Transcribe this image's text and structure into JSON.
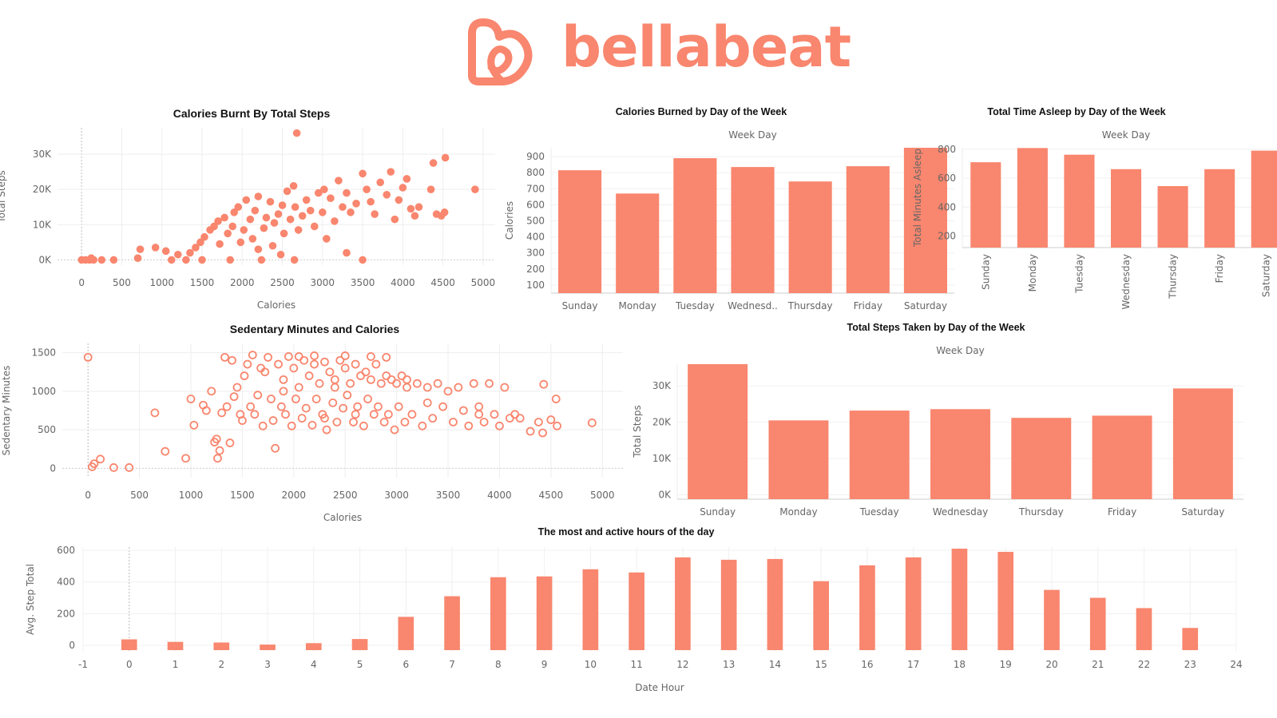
{
  "brand": {
    "name": "bellabeat",
    "color": "#f9866e"
  },
  "chart_data": [
    {
      "id": "calories-steps",
      "type": "scatter",
      "title": "Calories Burnt By Total Steps",
      "xlabel": "Calories",
      "ylabel": "Total Steps",
      "xlim": [
        -300,
        5150
      ],
      "ylim": [
        -1500,
        37500
      ],
      "xticks": [
        0,
        500,
        1000,
        1500,
        2000,
        2500,
        3000,
        3500,
        4000,
        4500,
        5000
      ],
      "yticks": [
        0,
        10000,
        20000,
        30000
      ],
      "ytick_labels": [
        "0K",
        "10K",
        "20K",
        "30K"
      ],
      "marker": "filled",
      "points": [
        [
          0,
          0
        ],
        [
          50,
          0
        ],
        [
          100,
          0
        ],
        [
          120,
          500
        ],
        [
          150,
          0
        ],
        [
          250,
          0
        ],
        [
          400,
          0
        ],
        [
          700,
          500
        ],
        [
          730,
          3000
        ],
        [
          920,
          3500
        ],
        [
          1050,
          2500
        ],
        [
          1120,
          0
        ],
        [
          1200,
          1500
        ],
        [
          1300,
          0
        ],
        [
          1350,
          2000
        ],
        [
          1420,
          3500
        ],
        [
          1480,
          5000
        ],
        [
          1500,
          0
        ],
        [
          1530,
          6500
        ],
        [
          1600,
          8500
        ],
        [
          1650,
          9500
        ],
        [
          1700,
          11000
        ],
        [
          1720,
          4500
        ],
        [
          1780,
          12000
        ],
        [
          1820,
          7500
        ],
        [
          1850,
          0
        ],
        [
          1880,
          9500
        ],
        [
          1900,
          13500
        ],
        [
          1950,
          15000
        ],
        [
          1980,
          5000
        ],
        [
          2020,
          8500
        ],
        [
          2050,
          17000
        ],
        [
          2100,
          11500
        ],
        [
          2130,
          6000
        ],
        [
          2160,
          14000
        ],
        [
          2200,
          18000
        ],
        [
          2240,
          0
        ],
        [
          2270,
          9000
        ],
        [
          2300,
          12000
        ],
        [
          2350,
          16500
        ],
        [
          2380,
          4000
        ],
        [
          2400,
          10500
        ],
        [
          2450,
          13000
        ],
        [
          2500,
          15500
        ],
        [
          2520,
          7500
        ],
        [
          2560,
          19500
        ],
        [
          2600,
          11500
        ],
        [
          2640,
          21000
        ],
        [
          2660,
          15000
        ],
        [
          2680,
          36000
        ],
        [
          2700,
          8500
        ],
        [
          2750,
          12500
        ],
        [
          2800,
          17000
        ],
        [
          2850,
          14000
        ],
        [
          2900,
          9500
        ],
        [
          2950,
          19000
        ],
        [
          3000,
          13500
        ],
        [
          3020,
          20000
        ],
        [
          3050,
          6000
        ],
        [
          3100,
          17500
        ],
        [
          3150,
          11000
        ],
        [
          3200,
          22500
        ],
        [
          3250,
          15000
        ],
        [
          3300,
          19000
        ],
        [
          3350,
          13500
        ],
        [
          3420,
          16000
        ],
        [
          3500,
          24500
        ],
        [
          3550,
          20000
        ],
        [
          3600,
          16500
        ],
        [
          3650,
          13000
        ],
        [
          3720,
          22000
        ],
        [
          3800,
          18500
        ],
        [
          3850,
          25000
        ],
        [
          3900,
          11500
        ],
        [
          3950,
          17000
        ],
        [
          4000,
          20500
        ],
        [
          4050,
          23000
        ],
        [
          4100,
          14500
        ],
        [
          4150,
          12500
        ],
        [
          4200,
          15000
        ],
        [
          4350,
          20000
        ],
        [
          4380,
          27500
        ],
        [
          4420,
          13000
        ],
        [
          4480,
          12500
        ],
        [
          4520,
          13500
        ],
        [
          4530,
          29000
        ],
        [
          4900,
          20000
        ],
        [
          3300,
          2000
        ],
        [
          3500,
          0
        ],
        [
          2650,
          0
        ],
        [
          2200,
          3000
        ],
        [
          2480,
          1500
        ]
      ]
    },
    {
      "id": "calories-weekday",
      "type": "bar",
      "title": "Calories Burned by Day of the Week",
      "header": "Week Day",
      "ylabel": "Calories",
      "categories": [
        "Sunday",
        "Monday",
        "Tuesday",
        "Wednesd..",
        "Thursday",
        "Friday",
        "Saturday"
      ],
      "values": [
        815,
        670,
        890,
        835,
        745,
        840,
        955
      ],
      "ylim": [
        50,
        955
      ],
      "yticks": [
        100,
        200,
        300,
        400,
        500,
        600,
        700,
        800,
        900
      ]
    },
    {
      "id": "sleep-weekday",
      "type": "bar",
      "title": "Total Time Asleep by Day of the Week",
      "header": "Week Day",
      "ylabel": "Total Minutes Asleep",
      "categories": [
        "Sunday",
        "Monday",
        "Tuesday",
        "Wednesday",
        "Thursday",
        "Friday",
        "Saturday"
      ],
      "values": [
        710,
        808,
        762,
        662,
        545,
        662,
        790
      ],
      "ylim": [
        120,
        810
      ],
      "yticks": [
        200,
        400,
        600,
        800
      ]
    },
    {
      "id": "sedentary-calories",
      "type": "scatter",
      "title": "Sedentary Minutes and Calories",
      "xlabel": "Calories",
      "ylabel": "Sedentary Minutes",
      "xlim": [
        -250,
        5200
      ],
      "ylim": [
        -120,
        1620
      ],
      "xticks": [
        0,
        500,
        1000,
        1500,
        2000,
        2500,
        3000,
        3500,
        4000,
        4500,
        5000
      ],
      "yticks": [
        0,
        500,
        1000,
        1500
      ],
      "marker": "hollow",
      "points": [
        [
          0,
          1440
        ],
        [
          40,
          20
        ],
        [
          60,
          60
        ],
        [
          120,
          120
        ],
        [
          250,
          10
        ],
        [
          400,
          10
        ],
        [
          650,
          720
        ],
        [
          750,
          220
        ],
        [
          950,
          130
        ],
        [
          1000,
          900
        ],
        [
          1030,
          560
        ],
        [
          1120,
          820
        ],
        [
          1150,
          750
        ],
        [
          1200,
          1000
        ],
        [
          1230,
          340
        ],
        [
          1250,
          380
        ],
        [
          1260,
          130
        ],
        [
          1280,
          230
        ],
        [
          1300,
          720
        ],
        [
          1330,
          1440
        ],
        [
          1350,
          800
        ],
        [
          1380,
          330
        ],
        [
          1400,
          1400
        ],
        [
          1420,
          930
        ],
        [
          1450,
          1050
        ],
        [
          1480,
          700
        ],
        [
          1500,
          620
        ],
        [
          1520,
          1200
        ],
        [
          1550,
          1350
        ],
        [
          1580,
          800
        ],
        [
          1600,
          1470
        ],
        [
          1620,
          700
        ],
        [
          1650,
          950
        ],
        [
          1680,
          1300
        ],
        [
          1700,
          550
        ],
        [
          1720,
          1250
        ],
        [
          1750,
          1440
        ],
        [
          1780,
          900
        ],
        [
          1800,
          620
        ],
        [
          1820,
          260
        ],
        [
          1850,
          1350
        ],
        [
          1880,
          800
        ],
        [
          1900,
          1150
        ],
        [
          1920,
          700
        ],
        [
          1950,
          1450
        ],
        [
          1980,
          550
        ],
        [
          2000,
          1300
        ],
        [
          2020,
          900
        ],
        [
          2050,
          1050
        ],
        [
          2080,
          650
        ],
        [
          2100,
          1400
        ],
        [
          2120,
          780
        ],
        [
          2150,
          1200
        ],
        [
          2180,
          560
        ],
        [
          2200,
          1350
        ],
        [
          2220,
          900
        ],
        [
          2250,
          1100
        ],
        [
          2280,
          700
        ],
        [
          2300,
          1380
        ],
        [
          2320,
          500
        ],
        [
          2350,
          1250
        ],
        [
          2380,
          850
        ],
        [
          2400,
          1150
        ],
        [
          2420,
          600
        ],
        [
          2450,
          1400
        ],
        [
          2480,
          780
        ],
        [
          2500,
          1300
        ],
        [
          2520,
          950
        ],
        [
          2550,
          1100
        ],
        [
          2580,
          600
        ],
        [
          2600,
          1350
        ],
        [
          2620,
          800
        ],
        [
          2650,
          1200
        ],
        [
          2680,
          550
        ],
        [
          2700,
          1250
        ],
        [
          2720,
          900
        ],
        [
          2750,
          1150
        ],
        [
          2780,
          700
        ],
        [
          2800,
          1350
        ],
        [
          2820,
          800
        ],
        [
          2850,
          1100
        ],
        [
          2880,
          600
        ],
        [
          2900,
          1200
        ],
        [
          2920,
          700
        ],
        [
          2950,
          1150
        ],
        [
          2980,
          500
        ],
        [
          3000,
          1100
        ],
        [
          3020,
          800
        ],
        [
          3050,
          1200
        ],
        [
          3080,
          600
        ],
        [
          3100,
          1150
        ],
        [
          3150,
          700
        ],
        [
          3200,
          1100
        ],
        [
          3250,
          550
        ],
        [
          3300,
          1050
        ],
        [
          3350,
          650
        ],
        [
          3400,
          1100
        ],
        [
          3450,
          800
        ],
        [
          3500,
          1000
        ],
        [
          3550,
          600
        ],
        [
          3600,
          1050
        ],
        [
          3650,
          750
        ],
        [
          3700,
          550
        ],
        [
          3750,
          1100
        ],
        [
          3800,
          700
        ],
        [
          3850,
          600
        ],
        [
          3900,
          1100
        ],
        [
          3950,
          700
        ],
        [
          4000,
          550
        ],
        [
          4050,
          1050
        ],
        [
          4100,
          650
        ],
        [
          4150,
          700
        ],
        [
          4200,
          650
        ],
        [
          4300,
          480
        ],
        [
          4380,
          600
        ],
        [
          4420,
          460
        ],
        [
          4430,
          1090
        ],
        [
          4500,
          630
        ],
        [
          4550,
          900
        ],
        [
          4560,
          550
        ],
        [
          4900,
          590
        ],
        [
          2900,
          1440
        ],
        [
          2750,
          1450
        ],
        [
          2500,
          1460
        ],
        [
          2200,
          1460
        ],
        [
          2050,
          1450
        ],
        [
          3100,
          1050
        ],
        [
          2400,
          1050
        ],
        [
          1900,
          1000
        ],
        [
          2600,
          700
        ],
        [
          2300,
          650
        ],
        [
          3300,
          850
        ],
        [
          3800,
          800
        ]
      ]
    },
    {
      "id": "steps-weekday",
      "type": "bar",
      "title": "Total Steps Taken by Day of the Week",
      "header": "Week Day",
      "ylabel": "Total Steps",
      "categories": [
        "Sunday",
        "Monday",
        "Tuesday",
        "Wednesday",
        "Thursday",
        "Friday",
        "Saturday"
      ],
      "values": [
        36000,
        20500,
        23200,
        23600,
        21200,
        21800,
        29300
      ],
      "ylim": [
        -1200,
        36200
      ],
      "yticks": [
        0,
        10000,
        20000,
        30000
      ],
      "ytick_labels": [
        "0K",
        "10K",
        "20K",
        "30K"
      ]
    },
    {
      "id": "steps-hour",
      "type": "bar",
      "title": "The most and active hours of the day",
      "xlabel": "Date Hour",
      "ylabel": "Avg. Step Total",
      "x": [
        0,
        1,
        2,
        3,
        4,
        5,
        6,
        7,
        8,
        9,
        10,
        11,
        12,
        13,
        14,
        15,
        16,
        17,
        18,
        19,
        20,
        21,
        22,
        23
      ],
      "values": [
        38,
        22,
        18,
        5,
        14,
        40,
        180,
        310,
        430,
        435,
        480,
        460,
        555,
        540,
        545,
        405,
        505,
        555,
        610,
        590,
        350,
        300,
        235,
        110
      ],
      "xlim": [
        -1,
        24
      ],
      "ylim": [
        -40,
        620
      ],
      "xticks": [
        -1,
        0,
        1,
        2,
        3,
        4,
        5,
        6,
        7,
        8,
        9,
        10,
        11,
        12,
        13,
        14,
        15,
        16,
        17,
        18,
        19,
        20,
        21,
        22,
        23,
        24
      ],
      "yticks": [
        0,
        200,
        400,
        600
      ]
    }
  ]
}
